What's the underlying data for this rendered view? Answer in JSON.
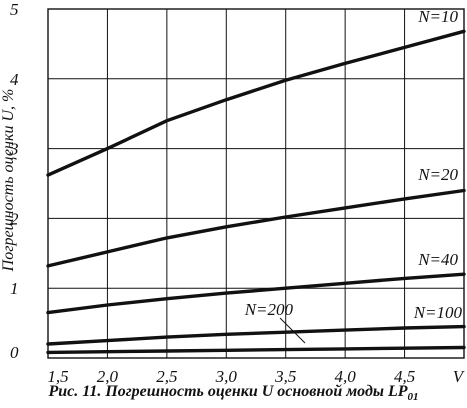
{
  "chart_data": {
    "type": "line",
    "ylabel": "Погрешность оценки U, %",
    "xlabel": "V",
    "xlim": [
      1.5,
      5.0
    ],
    "ylim": [
      0,
      5
    ],
    "x_ticks": [
      "1,5",
      "2,0",
      "2,5",
      "3,0",
      "3,5",
      "4,0",
      "4,5"
    ],
    "y_ticks": [
      "0",
      "1",
      "2",
      "3",
      "4",
      "5"
    ],
    "grid": true,
    "series": [
      {
        "name": "N=10",
        "x": [
          1.5,
          2.0,
          2.5,
          3.0,
          3.5,
          4.0,
          4.5,
          5.0
        ],
        "y": [
          2.62,
          3.0,
          3.4,
          3.7,
          3.98,
          4.22,
          4.45,
          4.68
        ]
      },
      {
        "name": "N=20",
        "x": [
          1.5,
          2.0,
          2.5,
          3.0,
          3.5,
          4.0,
          4.5,
          5.0
        ],
        "y": [
          1.32,
          1.52,
          1.72,
          1.88,
          2.02,
          2.15,
          2.28,
          2.4
        ]
      },
      {
        "name": "N=40",
        "x": [
          1.5,
          2.0,
          2.5,
          3.0,
          3.5,
          4.0,
          4.5,
          5.0
        ],
        "y": [
          0.65,
          0.76,
          0.85,
          0.93,
          1.0,
          1.07,
          1.14,
          1.2
        ]
      },
      {
        "name": "N=100",
        "x": [
          1.5,
          2.0,
          2.5,
          3.0,
          3.5,
          4.0,
          4.5,
          5.0
        ],
        "y": [
          0.2,
          0.25,
          0.3,
          0.34,
          0.37,
          0.4,
          0.43,
          0.45
        ]
      },
      {
        "name": "N=200",
        "x": [
          1.5,
          2.0,
          2.5,
          3.0,
          3.5,
          4.0,
          4.5,
          5.0
        ],
        "y": [
          0.08,
          0.09,
          0.1,
          0.11,
          0.12,
          0.13,
          0.14,
          0.15
        ]
      }
    ]
  },
  "caption": {
    "text": "Рис. 11. Погрешность оценки U основной моды LP",
    "subscript": "01"
  }
}
